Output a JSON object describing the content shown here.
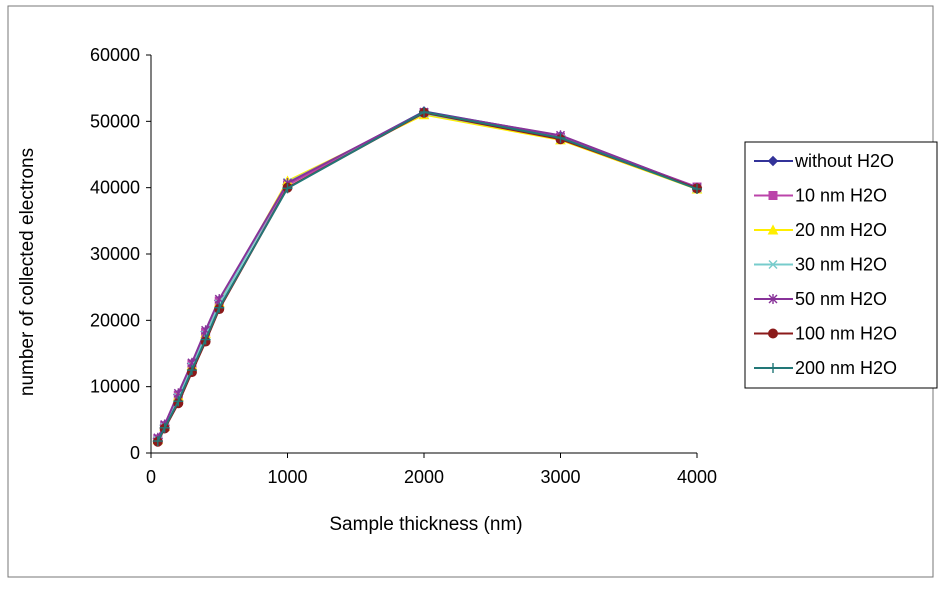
{
  "chart_data": {
    "type": "line",
    "title": "",
    "xlabel": "Sample thickness (nm)",
    "ylabel": "number of collected electrons",
    "xlim": [
      0,
      4000
    ],
    "ylim": [
      0,
      60000
    ],
    "x_ticks": [
      "0",
      "1000",
      "2000",
      "3000",
      "4000"
    ],
    "y_ticks": [
      "0",
      "10000",
      "20000",
      "30000",
      "40000",
      "50000",
      "60000"
    ],
    "grid": false,
    "legend_position": "right",
    "x": [
      50,
      100,
      200,
      300,
      400,
      500,
      1000,
      2000,
      3000,
      4000
    ],
    "series": [
      {
        "name": "without H2O",
        "marker": "diamond",
        "color": "#333399",
        "values": [
          2200,
          4200,
          8800,
          13500,
          18300,
          23000,
          40500,
          51500,
          47800,
          40000
        ]
      },
      {
        "name": "10 nm H2O",
        "marker": "square",
        "color": "#bb44aa",
        "values": [
          2100,
          4100,
          8700,
          13400,
          18200,
          22900,
          40400,
          51300,
          47600,
          40100
        ]
      },
      {
        "name": "20 nm H2O",
        "marker": "triangle",
        "color": "#ffee00",
        "values": [
          2000,
          4000,
          8600,
          13200,
          18000,
          22700,
          41000,
          51000,
          47200,
          39800
        ]
      },
      {
        "name": "30 nm H2O",
        "marker": "x",
        "color": "#77cccc",
        "values": [
          1900,
          3900,
          8400,
          13000,
          17800,
          22500,
          40800,
          51200,
          47400,
          39900
        ]
      },
      {
        "name": "50 nm H2O",
        "marker": "star",
        "color": "#883399",
        "values": [
          2300,
          4300,
          9000,
          13600,
          18500,
          23200,
          40700,
          51400,
          47900,
          40000
        ]
      },
      {
        "name": "100 nm H2O",
        "marker": "circle",
        "color": "#8b1a1a",
        "values": [
          1700,
          3700,
          7500,
          12200,
          16800,
          21700,
          40000,
          51300,
          47300,
          39900
        ]
      },
      {
        "name": "200 nm H2O",
        "marker": "plus",
        "color": "#227777",
        "values": [
          1800,
          3800,
          7800,
          12500,
          17100,
          21900,
          39900,
          51400,
          47500,
          39800
        ]
      }
    ]
  }
}
